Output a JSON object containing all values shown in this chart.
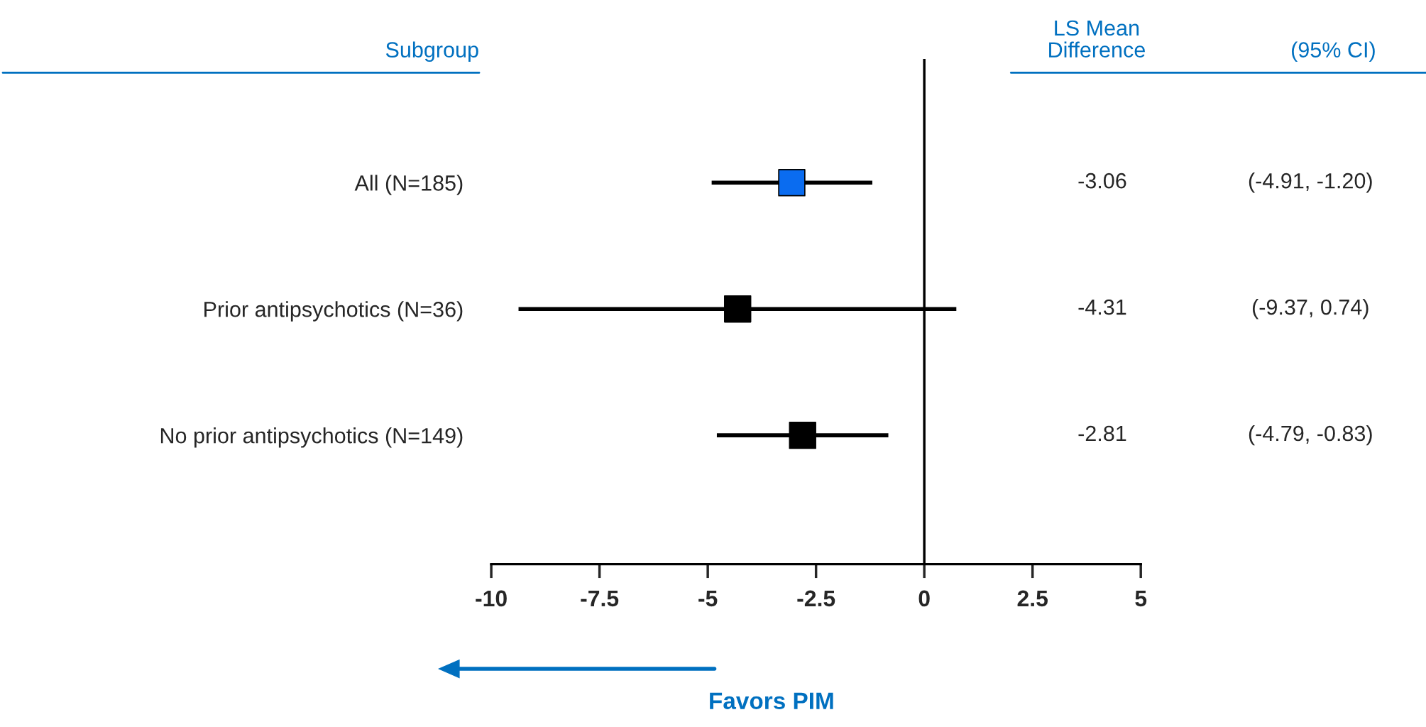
{
  "chart_data": {
    "type": "scatter",
    "categories": [
      "All (N=185)",
      "Prior antipsychotics (N=36)",
      "No prior antipsychotics (N=149)"
    ],
    "values": [
      -3.06,
      -4.31,
      -2.81
    ],
    "errors": [
      [
        -4.91,
        -1.2
      ],
      [
        -9.37,
        0.74
      ],
      [
        -4.79,
        -0.83
      ]
    ],
    "colors": [
      "#0a6cf0",
      "#000000",
      "#000000"
    ],
    "marker": "square",
    "orientation": "horizontal",
    "xlim": [
      -10,
      5
    ],
    "xticks": [
      -10,
      -7.5,
      -5,
      -2.5,
      0,
      2.5,
      5
    ],
    "ref_lines": [
      {
        "axis": "x",
        "value": 0,
        "color": "#000000"
      }
    ],
    "annotations": [
      "Subgroup",
      "LS Mean\nDifference",
      "(95% CI)",
      "-3.06",
      "-4.31",
      "-2.81",
      "(-4.91, -1.20)",
      "(-9.37, 0.74)",
      "(-4.79, -0.83)",
      "Favors PIM"
    ]
  }
}
